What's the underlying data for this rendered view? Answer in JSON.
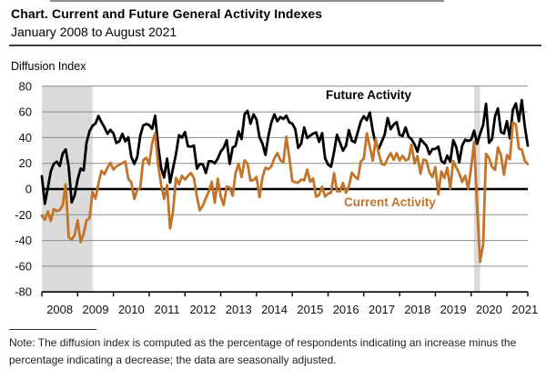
{
  "header": {
    "title": "Chart. Current and Future General Activity Indexes",
    "subtitle": "January 2008 to August 2021"
  },
  "note": "Note: The diffusion index is computed as the percentage of respondents indicating an increase minus the percentage indicating a decrease; the data are seasonally adjusted.",
  "colors": {
    "future_line": "#000000",
    "current_line": "#C2742B",
    "recession_band": "#DBDBDB",
    "gridline": "#8C8C8C",
    "axis": "#000000"
  },
  "chart_data": {
    "type": "line",
    "title": "Current and Future General Activity Indexes",
    "xlabel": "",
    "ylabel": "Diffusion Index",
    "ylim": [
      -80,
      80
    ],
    "yticks": [
      80,
      60,
      40,
      20,
      0,
      -20,
      -40,
      -60,
      -80
    ],
    "xtick_labels": [
      "2008",
      "2009",
      "2010",
      "2011",
      "2012",
      "2013",
      "2014",
      "2015",
      "2016",
      "2017",
      "2018",
      "2019",
      "2020",
      "2021"
    ],
    "grid": true,
    "legend_position": "inline-labels",
    "x_start": "2008-01",
    "x_end": "2021-08",
    "frequency": "monthly",
    "recession_bands": [
      {
        "start_index": 0,
        "end_index": 17
      },
      {
        "start_index": 145,
        "end_index": 147
      }
    ],
    "series": [
      {
        "name": "Future Activity",
        "color": "#000000",
        "values": [
          10.0,
          -11.5,
          1.0,
          13.7,
          19.5,
          21.3,
          18.0,
          27.6,
          30.8,
          17.0,
          -10.4,
          -5.0,
          7.4,
          15.9,
          14.5,
          36.2,
          45.0,
          49.2,
          51.0,
          56.8,
          52.0,
          48.0,
          43.0,
          46.0,
          43.3,
          35.8,
          37.1,
          43.0,
          37.0,
          40.2,
          25.0,
          19.6,
          24.8,
          41.4,
          49.5,
          50.5,
          49.8,
          46.8,
          57.0,
          33.6,
          16.6,
          9.0,
          23.7,
          5.0,
          16.0,
          27.2,
          41.9,
          40.0,
          44.4,
          33.3,
          32.9,
          33.8,
          15.8,
          19.5,
          19.3,
          12.5,
          21.6,
          21.6,
          20.0,
          23.7,
          29.2,
          32.1,
          38.0,
          19.5,
          32.3,
          33.7,
          44.9,
          38.9,
          58.2,
          60.8,
          50.8,
          58.1,
          54.0,
          40.2,
          35.4,
          26.6,
          41.5,
          52.0,
          58.1,
          52.8,
          56.0,
          54.5,
          57.1,
          51.9,
          50.9,
          46.4,
          32.0,
          35.5,
          47.9,
          39.7,
          41.5,
          43.1,
          44.0,
          36.7,
          43.4,
          24.1,
          19.1,
          17.3,
          28.8,
          42.2,
          36.1,
          29.8,
          33.7,
          45.8,
          37.5,
          36.3,
          44.7,
          52.6,
          56.6,
          53.5,
          59.5,
          45.4,
          34.8,
          31.3,
          36.9,
          42.3,
          55.2,
          46.6,
          50.1,
          52.1,
          42.2,
          41.2,
          47.9,
          40.7,
          38.7,
          34.8,
          29.0,
          38.8,
          36.3,
          33.8,
          27.2,
          31.1,
          31.2,
          33.0,
          22.0,
          20.0,
          26.0,
          21.4,
          38.0,
          32.6,
          20.8,
          33.8,
          38.4,
          37.4,
          38.4,
          45.4,
          35.2,
          43.0,
          49.7,
          66.3,
          36.0,
          38.8,
          56.6,
          62.7,
          44.3,
          43.1,
          52.8,
          39.5,
          61.6,
          66.6,
          52.7,
          69.2,
          48.6,
          33.7
        ]
      },
      {
        "name": "Current Activity",
        "color": "#C2742B",
        "values": [
          -20.6,
          -24.0,
          -17.4,
          -24.9,
          -15.6,
          -17.1,
          -16.3,
          -12.7,
          3.8,
          -37.5,
          -39.3,
          -36.1,
          -24.3,
          -41.3,
          -35.0,
          -24.4,
          -22.6,
          -2.2,
          -7.5,
          4.2,
          14.1,
          11.5,
          16.7,
          20.4,
          15.2,
          17.6,
          18.9,
          20.2,
          21.4,
          8.0,
          5.1,
          -7.7,
          -0.7,
          1.0,
          22.5,
          24.3,
          19.3,
          35.9,
          43.4,
          18.5,
          3.9,
          -7.7,
          3.2,
          -30.7,
          -17.5,
          8.7,
          3.6,
          10.3,
          7.3,
          10.2,
          12.5,
          8.5,
          -5.8,
          -16.6,
          -12.9,
          -7.1,
          -1.9,
          5.7,
          -10.7,
          8.1,
          -5.8,
          -12.5,
          2.0,
          1.3,
          -5.2,
          12.5,
          19.8,
          9.3,
          22.3,
          19.8,
          6.5,
          7.0,
          9.4,
          -6.3,
          9.0,
          16.6,
          15.4,
          17.8,
          23.9,
          28.0,
          22.5,
          20.7,
          40.8,
          24.5,
          6.3,
          5.2,
          5.0,
          7.5,
          6.7,
          15.2,
          5.7,
          8.3,
          -6.0,
          -4.5,
          1.9,
          -5.9,
          -3.5,
          -2.8,
          12.4,
          -1.6,
          -1.8,
          4.7,
          -2.9,
          2.0,
          12.8,
          9.7,
          7.6,
          21.5,
          23.6,
          43.3,
          32.8,
          22.0,
          38.8,
          27.6,
          19.5,
          18.9,
          23.8,
          27.9,
          22.7,
          27.9,
          22.2,
          25.8,
          22.3,
          23.2,
          34.4,
          19.9,
          25.7,
          11.9,
          22.9,
          22.2,
          12.9,
          9.4,
          17.0,
          -4.1,
          13.7,
          8.5,
          16.6,
          0.3,
          21.8,
          16.8,
          12.0,
          5.6,
          10.4,
          0.3,
          17.0,
          36.7,
          -12.7,
          -56.6,
          -43.1,
          27.5,
          24.1,
          17.2,
          15.0,
          32.3,
          26.3,
          11.1,
          26.5,
          23.1,
          51.8,
          50.2,
          31.5,
          30.7,
          21.9,
          19.4
        ]
      }
    ]
  }
}
